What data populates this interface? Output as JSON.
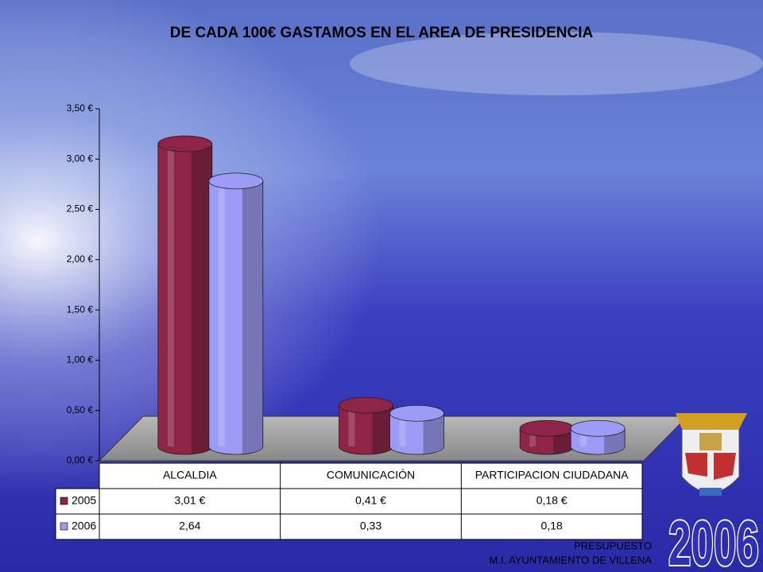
{
  "chart_data": {
    "type": "bar",
    "title": "DE CADA 100€ GASTAMOS EN EL AREA DE PRESIDENCIA",
    "categories": [
      "ALCALDIA",
      "COMUNICACIÓN",
      "PARTICIPACION CIUDADANA"
    ],
    "series": [
      {
        "name": "2005",
        "color": "#8e2448",
        "values": [
          3.01,
          0.41,
          0.18
        ],
        "value_labels": [
          "3,01 €",
          "0,41 €",
          "0,18 €"
        ]
      },
      {
        "name": "2006",
        "color": "#9c9cf6",
        "values": [
          2.64,
          0.33,
          0.18
        ],
        "value_labels": [
          "2,64",
          "0,33",
          "0,18"
        ]
      }
    ],
    "ylim": [
      0,
      3.5
    ],
    "yticks": [
      {
        "value": 0,
        "label": "0,00 €"
      },
      {
        "value": 0.5,
        "label": "0,50 €"
      },
      {
        "value": 1,
        "label": "1,00 €"
      },
      {
        "value": 1.5,
        "label": "1,50 €"
      },
      {
        "value": 2,
        "label": "2,00 €"
      },
      {
        "value": 2.5,
        "label": "2,50 €"
      },
      {
        "value": 3,
        "label": "3,00 €"
      },
      {
        "value": 3.5,
        "label": "3,50 €"
      }
    ],
    "grid": false
  },
  "footer": {
    "lines": [
      "PRESUPUESTO",
      "M.I. AYUNTAMIENTO DE VILLENA"
    ],
    "year": "2006"
  }
}
